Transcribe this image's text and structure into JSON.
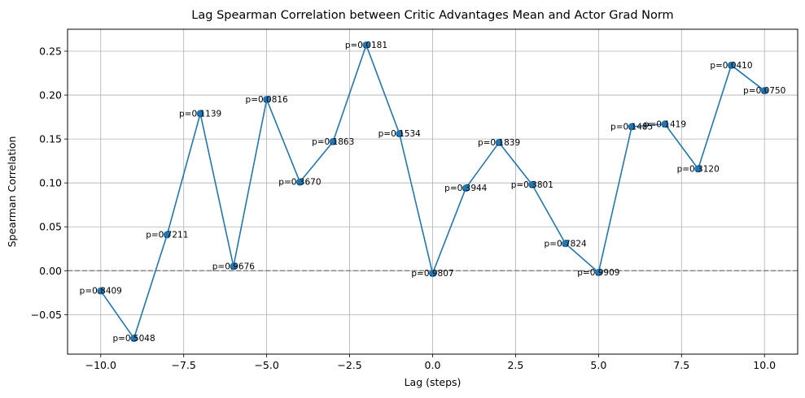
{
  "chart_data": {
    "type": "line",
    "title": "Lag Spearman Correlation between Critic Advantages Mean and Actor Grad Norm",
    "xlabel": "Lag (steps)",
    "ylabel": "Spearman Correlation",
    "xlim": [
      -11,
      11
    ],
    "ylim": [
      -0.095,
      0.275
    ],
    "xticks": [
      -10.0,
      -7.5,
      -5.0,
      -2.5,
      0.0,
      2.5,
      5.0,
      7.5,
      10.0
    ],
    "xtick_labels": [
      "−10.0",
      "−7.5",
      "−5.0",
      "−2.5",
      "0.0",
      "2.5",
      "5.0",
      "7.5",
      "10.0"
    ],
    "yticks": [
      -0.05,
      0.0,
      0.05,
      0.1,
      0.15,
      0.2,
      0.25
    ],
    "ytick_labels": [
      "−0.05",
      "0.00",
      "0.05",
      "0.10",
      "0.15",
      "0.20",
      "0.25"
    ],
    "grid": true,
    "reference_line": {
      "y": 0,
      "style": "dashed",
      "color": "#808080"
    },
    "series": [
      {
        "color": "#1f77b4",
        "marker": "circle",
        "x": [
          -10,
          -9,
          -8,
          -7,
          -6,
          -5,
          -4,
          -3,
          -2,
          -1,
          0,
          1,
          2,
          3,
          4,
          5,
          6,
          7,
          8,
          9,
          10
        ],
        "y": [
          -0.023,
          -0.077,
          0.041,
          0.179,
          0.005,
          0.195,
          0.101,
          0.147,
          0.257,
          0.156,
          -0.003,
          0.094,
          0.146,
          0.098,
          0.031,
          -0.002,
          0.164,
          0.167,
          0.116,
          0.234,
          0.205
        ]
      }
    ],
    "annotations": [
      "p=0.8409",
      "p=0.5048",
      "p=0.7211",
      "p=0.1139",
      "p=0.9676",
      "p=0.0816",
      "p=0.3670",
      "p=0.1863",
      "p=0.0181",
      "p=0.1534",
      "p=0.9807",
      "p=0.3944",
      "p=0.1839",
      "p=0.3801",
      "p=0.7824",
      "p=0.9909",
      "p=0.1485",
      "p=0.1419",
      "p=0.3120",
      "p=0.0410",
      "p=0.0750"
    ]
  }
}
